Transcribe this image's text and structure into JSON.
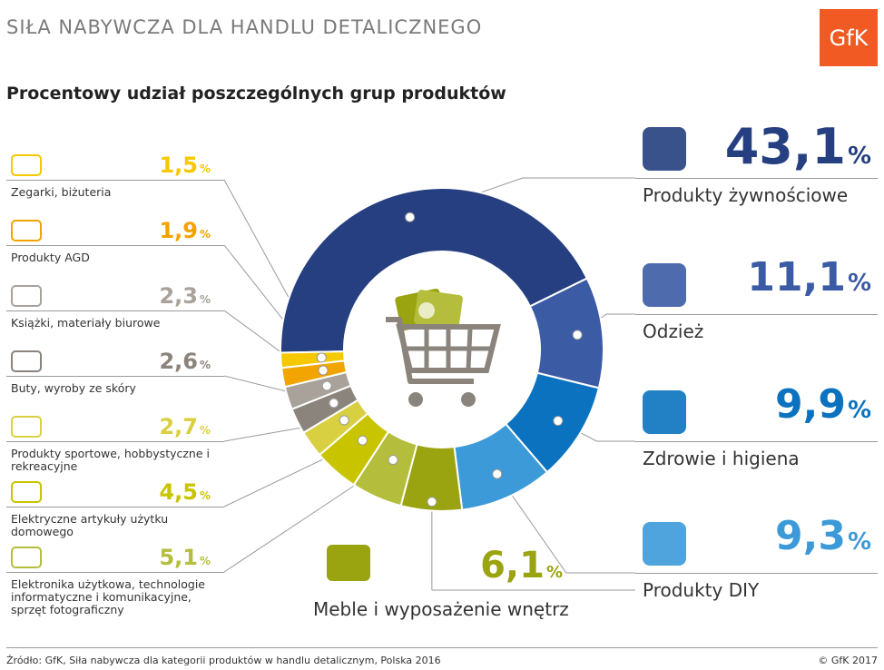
{
  "header": {
    "title": "SIŁA NABYWCZA DLA HANDLU DETALICZNEGO",
    "subtitle": "Procentowy udział poszczególnych grup produktów",
    "logo": "GfK"
  },
  "colors": {
    "food": "#253f80",
    "clothing": "#3b5ba5",
    "health": "#0a72bf",
    "diy": "#3c9ad9",
    "furniture": "#9aa310",
    "electronics": "#b4be3c",
    "appliances_el": "#c9c400",
    "sports": "#d8d040",
    "shoes": "#8a847c",
    "books": "#a8a29a",
    "agd": "#f2a400",
    "watches": "#f5c800"
  },
  "chart_data": {
    "type": "pie",
    "donut": true,
    "title": "Procentowy udział poszczególnych grup produktów",
    "unit": "%",
    "segments": [
      {
        "label": "Produkty żywnościowe",
        "value": 43.1,
        "display": "43,1"
      },
      {
        "label": "Odzież",
        "value": 11.1,
        "display": "11,1"
      },
      {
        "label": "Zdrowie i higiena",
        "value": 9.9,
        "display": "9,9"
      },
      {
        "label": "Produkty DIY",
        "value": 9.3,
        "display": "9,3"
      },
      {
        "label": "Meble i wyposażenie wnętrz",
        "value": 6.1,
        "display": "6,1"
      },
      {
        "label": "Elektronika użytkowa, technologie informatyczne i komunikacyjne, sprzęt fotograficzny",
        "value": 5.1,
        "display": "5,1"
      },
      {
        "label": "Elektryczne artykuły użytku domowego",
        "value": 4.5,
        "display": "4,5"
      },
      {
        "label": "Produkty sportowe, hobbystyczne i rekreacyjne",
        "value": 2.7,
        "display": "2,7"
      },
      {
        "label": "Buty, wyroby ze skóry",
        "value": 2.6,
        "display": "2,6"
      },
      {
        "label": "Książki, materiały biurowe",
        "value": 2.3,
        "display": "2,3"
      },
      {
        "label": "Produkty AGD",
        "value": 1.9,
        "display": "1,9"
      },
      {
        "label": "Zegarki, biżuteria",
        "value": 1.5,
        "display": "1,5"
      }
    ]
  },
  "left_items": [
    {
      "pct": "1,5",
      "label": "Zegarki, biżuteria",
      "icon": "watch-jewelry-icon",
      "color": "#f5c800"
    },
    {
      "pct": "1,9",
      "label": "Produkty AGD",
      "icon": "washing-machine-icon",
      "color": "#f2a400"
    },
    {
      "pct": "2,3",
      "label": "Książki, materiały biurowe",
      "icon": "books-binders-icon",
      "color": "#a8a29a"
    },
    {
      "pct": "2,6",
      "label": "Buty, wyroby ze skóry",
      "icon": "bag-shoe-icon",
      "color": "#8a847c"
    },
    {
      "pct": "2,7",
      "label": "Produkty sportowe, hobbystyczne i rekreacyjne",
      "icon": "bicycle-icon",
      "color": "#d8d040"
    },
    {
      "pct": "4,5",
      "label": "Elektryczne artykuły użytku domowego",
      "icon": "iron-icon",
      "color": "#c9c400"
    },
    {
      "pct": "5,1",
      "label": "Elektronika użytkowa, technologie informatyczne i komunikacyjne, sprzęt fotograficzny",
      "icon": "tv-camera-icon",
      "color": "#b4be3c"
    }
  ],
  "right_items": [
    {
      "pct": "43,1",
      "label": "Produkty żywnościowe",
      "icon": "milk-bread-icon",
      "color": "#253f80"
    },
    {
      "pct": "11,1",
      "label": "Odzież",
      "icon": "dress-shirt-icon",
      "color": "#3b5ba5"
    },
    {
      "pct": "9,9",
      "label": "Zdrowie i higiena",
      "icon": "heart-bottle-icon",
      "color": "#0a72bf"
    },
    {
      "pct": "9,3",
      "label": "Produkty DIY",
      "icon": "scissors-tools-icon",
      "color": "#3c9ad9"
    }
  ],
  "bottom_item": {
    "pct": "6,1",
    "label": "Meble i wyposażenie wnętrz",
    "icon": "armchair-wardrobe-icon",
    "color": "#9aa310"
  },
  "percent_sign": "%",
  "footer": {
    "source": "Źródło: GfK, Siła nabywcza dla kategorii produktów w handlu detalicznym, Polska 2016",
    "copyright": "© GfK 2017"
  }
}
